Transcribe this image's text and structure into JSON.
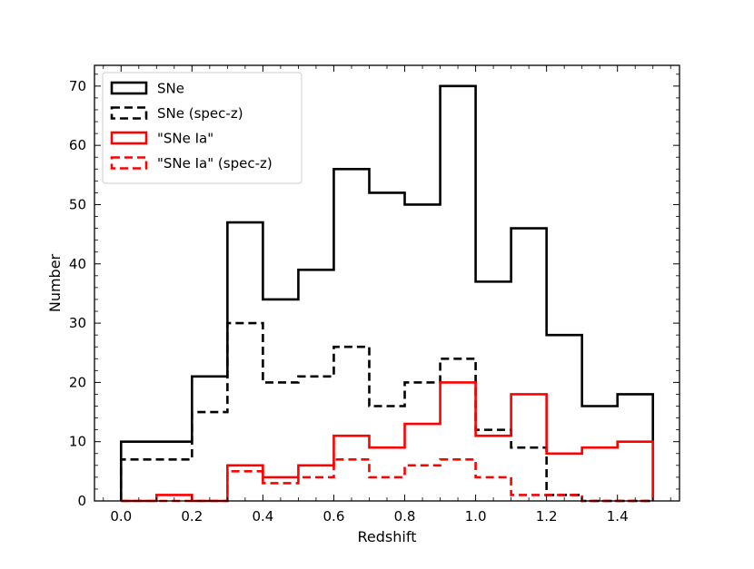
{
  "chart_data": {
    "type": "histogram",
    "title": "",
    "xlabel": "Redshift",
    "ylabel": "Number",
    "xlim": [
      -0.075,
      1.575
    ],
    "ylim": [
      0,
      73.5
    ],
    "bin_edges": [
      0.0,
      0.1,
      0.2,
      0.3,
      0.4,
      0.5,
      0.6,
      0.7,
      0.8,
      0.9,
      1.0,
      1.1,
      1.2,
      1.3,
      1.4,
      1.5
    ],
    "x_ticks": [
      0.0,
      0.2,
      0.4,
      0.6,
      0.8,
      1.0,
      1.2,
      1.4
    ],
    "x_tick_labels": [
      "0.0",
      "0.2",
      "0.4",
      "0.6",
      "0.8",
      "1.0",
      "1.2",
      "1.4"
    ],
    "y_ticks": [
      0,
      10,
      20,
      30,
      40,
      50,
      60,
      70
    ],
    "y_tick_labels": [
      "0",
      "10",
      "20",
      "30",
      "40",
      "50",
      "60",
      "70"
    ],
    "grid": false,
    "legend_position": "top-left",
    "series": [
      {
        "name": "SNe",
        "color": "#000000",
        "style": "solid",
        "values": [
          10,
          10,
          21,
          47,
          34,
          39,
          56,
          52,
          50,
          70,
          37,
          46,
          28,
          16,
          18
        ]
      },
      {
        "name": "SNe (spec-z)",
        "color": "#000000",
        "style": "dashed",
        "values": [
          7,
          7,
          15,
          30,
          20,
          21,
          26,
          16,
          20,
          24,
          12,
          9,
          1,
          0,
          0
        ]
      },
      {
        "name": "\"SNe Ia\"",
        "color": "#ff0000",
        "style": "solid",
        "values": [
          0,
          1,
          0,
          6,
          4,
          6,
          11,
          9,
          13,
          20,
          11,
          18,
          8,
          9,
          10
        ]
      },
      {
        "name": "\"SNe Ia\" (spec-z)",
        "color": "#ff0000",
        "style": "dashed",
        "values": [
          0,
          0,
          0,
          5,
          3,
          4,
          7,
          4,
          6,
          7,
          4,
          1,
          1,
          0,
          0
        ]
      }
    ]
  }
}
